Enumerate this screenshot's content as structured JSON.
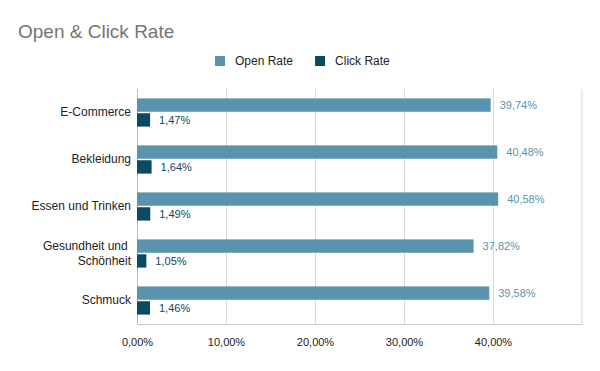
{
  "chart_data": {
    "type": "bar",
    "title": "Open & Click Rate",
    "orientation": "horizontal",
    "categories": [
      "E-Commerce",
      "Bekleidung",
      "Essen und Trinken",
      "Gesundheit und Schönheit",
      "Schmuck"
    ],
    "series": [
      {
        "name": "Open Rate",
        "color": "#5a93ae",
        "values": [
          39.74,
          40.48,
          40.58,
          37.82,
          39.58
        ],
        "value_labels": [
          "39,74%",
          "40,48%",
          "40,58%",
          "37,82%",
          "39,58%"
        ]
      },
      {
        "name": "Click Rate",
        "color": "#0b4a61",
        "values": [
          1.47,
          1.64,
          1.49,
          1.05,
          1.46
        ],
        "value_labels": [
          "1,47%",
          "1,64%",
          "1,49%",
          "1,05%",
          "1,46%"
        ]
      }
    ],
    "xlim": [
      0,
      50
    ],
    "xticks": [
      {
        "value": 0,
        "label": "0,00%"
      },
      {
        "value": 10,
        "label": "10,00%"
      },
      {
        "value": 20,
        "label": "20,00%"
      },
      {
        "value": 30,
        "label": "30,00%"
      },
      {
        "value": 40,
        "label": "40,00%"
      }
    ],
    "grid": true,
    "legend": "top",
    "data_labels": true
  }
}
